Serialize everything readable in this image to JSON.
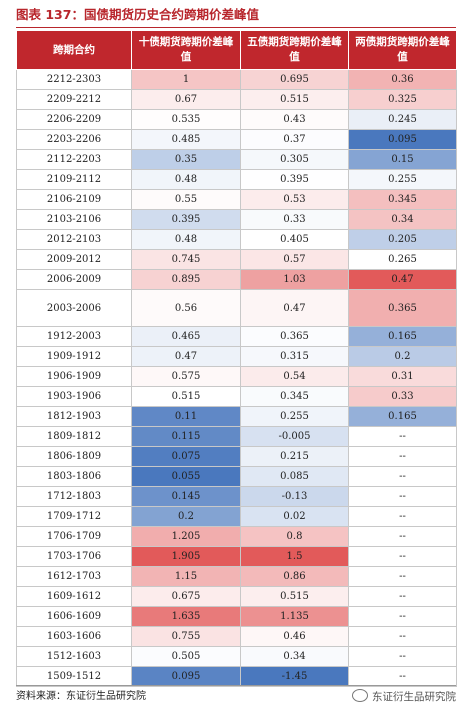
{
  "title": "图表 137：国债期货历史合约跨期价差峰值",
  "headers": [
    "跨期合约",
    "十债期货跨期价差峰值",
    "五债期货跨期价差峰值",
    "两债期货跨期价差峰值"
  ],
  "colors": {
    "header_bg": "#c0272d",
    "positive": "#e25a5a",
    "negative": "#4a78be"
  },
  "rows": [
    {
      "contract": "2212-2303",
      "ten": "1",
      "five": "0.695",
      "two": "0.36"
    },
    {
      "contract": "2209-2212",
      "ten": "0.67",
      "five": "0.515",
      "two": "0.325"
    },
    {
      "contract": "2206-2209",
      "ten": "0.535",
      "five": "0.43",
      "two": "0.245"
    },
    {
      "contract": "2203-2206",
      "ten": "0.485",
      "five": "0.37",
      "two": "0.095"
    },
    {
      "contract": "2112-2203",
      "ten": "0.35",
      "five": "0.305",
      "two": "0.15"
    },
    {
      "contract": "2109-2112",
      "ten": "0.48",
      "five": "0.395",
      "two": "0.255"
    },
    {
      "contract": "2106-2109",
      "ten": "0.55",
      "five": "0.53",
      "two": "0.345"
    },
    {
      "contract": "2103-2106",
      "ten": "0.395",
      "five": "0.33",
      "two": "0.34"
    },
    {
      "contract": "2012-2103",
      "ten": "0.48",
      "five": "0.405",
      "two": "0.205"
    },
    {
      "contract": "2009-2012",
      "ten": "0.745",
      "five": "0.57",
      "two": "0.265"
    },
    {
      "contract": "2006-2009",
      "ten": "0.895",
      "five": "1.03",
      "two": "0.47"
    },
    {
      "contract": "2003-2006",
      "ten": "0.56",
      "five": "0.47",
      "two": "0.365",
      "tall": true
    },
    {
      "contract": "1912-2003",
      "ten": "0.465",
      "five": "0.365",
      "two": "0.165"
    },
    {
      "contract": "1909-1912",
      "ten": "0.47",
      "five": "0.315",
      "two": "0.2"
    },
    {
      "contract": "1906-1909",
      "ten": "0.575",
      "five": "0.54",
      "two": "0.31"
    },
    {
      "contract": "1903-1906",
      "ten": "0.515",
      "five": "0.345",
      "two": "0.33"
    },
    {
      "contract": "1812-1903",
      "ten": "0.11",
      "five": "0.255",
      "two": "0.165"
    },
    {
      "contract": "1809-1812",
      "ten": "0.115",
      "five": "-0.005",
      "two": "--"
    },
    {
      "contract": "1806-1809",
      "ten": "0.075",
      "five": "0.215",
      "two": "--"
    },
    {
      "contract": "1803-1806",
      "ten": "0.055",
      "five": "0.085",
      "two": "--"
    },
    {
      "contract": "1712-1803",
      "ten": "0.145",
      "five": "-0.13",
      "two": "--"
    },
    {
      "contract": "1709-1712",
      "ten": "0.2",
      "five": "0.02",
      "two": "--"
    },
    {
      "contract": "1706-1709",
      "ten": "1.205",
      "five": "0.8",
      "two": "--"
    },
    {
      "contract": "1703-1706",
      "ten": "1.905",
      "five": "1.5",
      "two": "--"
    },
    {
      "contract": "1612-1703",
      "ten": "1.15",
      "five": "0.86",
      "two": "--"
    },
    {
      "contract": "1609-1612",
      "ten": "0.675",
      "five": "0.515",
      "two": "--"
    },
    {
      "contract": "1606-1609",
      "ten": "1.635",
      "five": "1.135",
      "two": "--"
    },
    {
      "contract": "1603-1606",
      "ten": "0.755",
      "five": "0.46",
      "two": "--"
    },
    {
      "contract": "1512-1603",
      "ten": "0.505",
      "five": "0.34",
      "two": "--"
    },
    {
      "contract": "1509-1512",
      "ten": "0.095",
      "five": "-1.45",
      "two": "--"
    }
  ],
  "source": "资料来源：东证衍生品研究院",
  "watermark": "东证衍生品研究院"
}
